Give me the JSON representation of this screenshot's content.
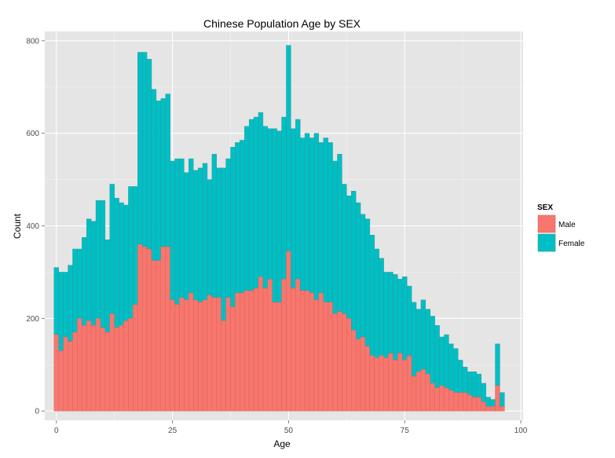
{
  "chart_data": {
    "type": "bar",
    "stacked": true,
    "title": "Chinese Population Age by SEX",
    "xlabel": "Age",
    "ylabel": "Count",
    "xlim": [
      -2.5,
      100.5
    ],
    "ylim": [
      -20,
      820
    ],
    "x_ticks": [
      0,
      25,
      50,
      75,
      100
    ],
    "y_ticks": [
      0,
      200,
      400,
      600,
      800
    ],
    "grid": true,
    "legend": {
      "title": "SEX",
      "position": "right"
    },
    "colors": {
      "Male": "#F8766D",
      "Female": "#00BFC4",
      "panel": "#E5E5E5",
      "grid": "#FFFFFF"
    },
    "x": [
      0,
      1,
      2,
      3,
      4,
      5,
      6,
      7,
      8,
      9,
      10,
      11,
      12,
      13,
      14,
      15,
      16,
      17,
      18,
      19,
      20,
      21,
      22,
      23,
      24,
      25,
      26,
      27,
      28,
      29,
      30,
      31,
      32,
      33,
      34,
      35,
      36,
      37,
      38,
      39,
      40,
      41,
      42,
      43,
      44,
      45,
      46,
      47,
      48,
      49,
      50,
      51,
      52,
      53,
      54,
      55,
      56,
      57,
      58,
      59,
      60,
      61,
      62,
      63,
      64,
      65,
      66,
      67,
      68,
      69,
      70,
      71,
      72,
      73,
      74,
      75,
      76,
      77,
      78,
      79,
      80,
      81,
      82,
      83,
      84,
      85,
      86,
      87,
      88,
      89,
      90,
      91,
      92,
      93,
      94,
      95,
      96
    ],
    "series": [
      {
        "name": "Male",
        "values": [
          165,
          130,
          160,
          150,
          170,
          200,
          185,
          195,
          185,
          200,
          180,
          170,
          210,
          180,
          185,
          195,
          200,
          230,
          360,
          355,
          350,
          325,
          325,
          355,
          355,
          240,
          230,
          245,
          240,
          255,
          240,
          235,
          240,
          250,
          245,
          245,
          195,
          245,
          225,
          255,
          255,
          260,
          260,
          265,
          290,
          265,
          285,
          235,
          235,
          285,
          345,
          265,
          285,
          260,
          260,
          255,
          240,
          255,
          235,
          235,
          210,
          215,
          210,
          200,
          175,
          155,
          160,
          140,
          120,
          115,
          120,
          115,
          125,
          110,
          125,
          110,
          120,
          75,
          85,
          90,
          80,
          60,
          50,
          55,
          50,
          45,
          40,
          40,
          40,
          35,
          30,
          30,
          20,
          10,
          10,
          55,
          10
        ]
      },
      {
        "name": "Female",
        "values": [
          145,
          170,
          140,
          165,
          180,
          150,
          190,
          220,
          225,
          255,
          275,
          200,
          280,
          280,
          265,
          250,
          285,
          255,
          415,
          420,
          410,
          370,
          345,
          320,
          330,
          300,
          315,
          300,
          275,
          290,
          280,
          290,
          295,
          250,
          310,
          280,
          330,
          300,
          345,
          325,
          330,
          355,
          370,
          370,
          355,
          350,
          325,
          375,
          370,
          350,
          445,
          345,
          345,
          330,
          340,
          335,
          360,
          325,
          355,
          345,
          330,
          340,
          280,
          265,
          300,
          295,
          265,
          275,
          260,
          235,
          210,
          185,
          175,
          185,
          160,
          180,
          150,
          160,
          135,
          150,
          140,
          145,
          135,
          105,
          115,
          100,
          95,
          70,
          55,
          50,
          55,
          50,
          40,
          20,
          15,
          90,
          30
        ]
      }
    ]
  }
}
